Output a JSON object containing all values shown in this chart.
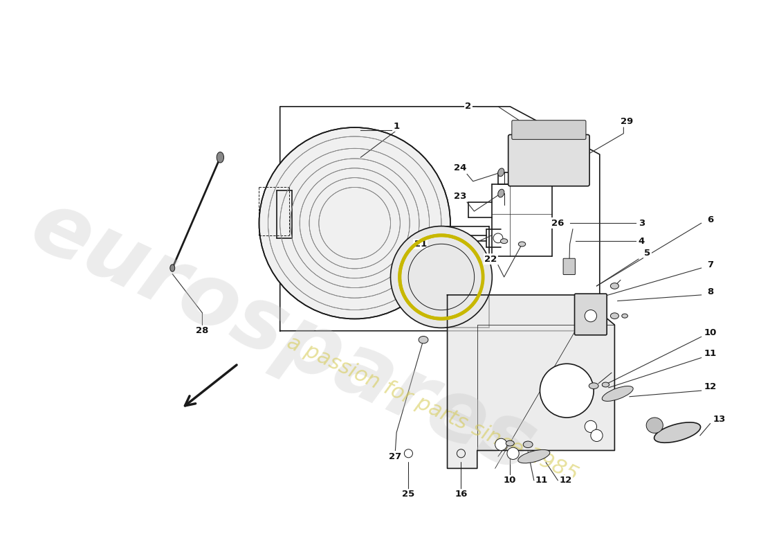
{
  "bg_color": "#ffffff",
  "line_color": "#1a1a1a",
  "lw": 1.2,
  "lw_thin": 0.7,
  "label_fontsize": 9,
  "yellow_color": "#c8b800",
  "gray_fill": "#d8d8d8",
  "light_gray": "#e8e8e8",
  "watermark_color": "#cccccc",
  "watermark_yellow": "#d4c84a"
}
